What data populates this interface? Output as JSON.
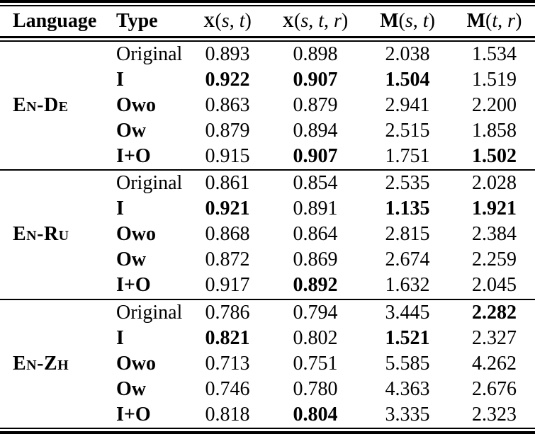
{
  "table": {
    "headers": [
      {
        "label": "Language"
      },
      {
        "label": "Type"
      },
      {
        "symbol": "X",
        "symbol_small": true,
        "vars": [
          "s",
          "t"
        ]
      },
      {
        "symbol": "X",
        "symbol_small": true,
        "vars": [
          "s",
          "t",
          "r"
        ]
      },
      {
        "symbol": "M",
        "symbol_small": false,
        "vars": [
          "s",
          "t"
        ]
      },
      {
        "symbol": "M",
        "symbol_small": false,
        "vars": [
          "t",
          "r"
        ]
      }
    ],
    "groups": [
      {
        "language": "En-De",
        "rows": [
          {
            "type": "Original",
            "type_bold": false,
            "values": [
              "0.893",
              "0.898",
              "2.038",
              "1.534"
            ],
            "bold": [
              false,
              false,
              false,
              false
            ]
          },
          {
            "type": "I",
            "type_bold": true,
            "values": [
              "0.922",
              "0.907",
              "1.504",
              "1.519"
            ],
            "bold": [
              true,
              true,
              true,
              false
            ]
          },
          {
            "type": "Owo",
            "type_bold": true,
            "values": [
              "0.863",
              "0.879",
              "2.941",
              "2.200"
            ],
            "bold": [
              false,
              false,
              false,
              false
            ]
          },
          {
            "type": "Ow",
            "type_bold": true,
            "values": [
              "0.879",
              "0.894",
              "2.515",
              "1.858"
            ],
            "bold": [
              false,
              false,
              false,
              false
            ]
          },
          {
            "type": "I+O",
            "type_bold": true,
            "values": [
              "0.915",
              "0.907",
              "1.751",
              "1.502"
            ],
            "bold": [
              false,
              true,
              false,
              true
            ]
          }
        ]
      },
      {
        "language": "En-Ru",
        "rows": [
          {
            "type": "Original",
            "type_bold": false,
            "values": [
              "0.861",
              "0.854",
              "2.535",
              "2.028"
            ],
            "bold": [
              false,
              false,
              false,
              false
            ]
          },
          {
            "type": "I",
            "type_bold": true,
            "values": [
              "0.921",
              "0.891",
              "1.135",
              "1.921"
            ],
            "bold": [
              true,
              false,
              true,
              true
            ]
          },
          {
            "type": "Owo",
            "type_bold": true,
            "values": [
              "0.868",
              "0.864",
              "2.815",
              "2.384"
            ],
            "bold": [
              false,
              false,
              false,
              false
            ]
          },
          {
            "type": "Ow",
            "type_bold": true,
            "values": [
              "0.872",
              "0.869",
              "2.674",
              "2.259"
            ],
            "bold": [
              false,
              false,
              false,
              false
            ]
          },
          {
            "type": "I+O",
            "type_bold": true,
            "values": [
              "0.917",
              "0.892",
              "1.632",
              "2.045"
            ],
            "bold": [
              false,
              true,
              false,
              false
            ]
          }
        ]
      },
      {
        "language": "En-Zh",
        "rows": [
          {
            "type": "Original",
            "type_bold": false,
            "values": [
              "0.786",
              "0.794",
              "3.445",
              "2.282"
            ],
            "bold": [
              false,
              false,
              false,
              true
            ]
          },
          {
            "type": "I",
            "type_bold": true,
            "values": [
              "0.821",
              "0.802",
              "1.521",
              "2.327"
            ],
            "bold": [
              true,
              false,
              true,
              false
            ]
          },
          {
            "type": "Owo",
            "type_bold": true,
            "values": [
              "0.713",
              "0.751",
              "5.585",
              "4.262"
            ],
            "bold": [
              false,
              false,
              false,
              false
            ]
          },
          {
            "type": "Ow",
            "type_bold": true,
            "values": [
              "0.746",
              "0.780",
              "4.363",
              "2.676"
            ],
            "bold": [
              false,
              false,
              false,
              false
            ]
          },
          {
            "type": "I+O",
            "type_bold": true,
            "values": [
              "0.818",
              "0.804",
              "3.335",
              "2.323"
            ],
            "bold": [
              false,
              true,
              false,
              false
            ]
          }
        ]
      }
    ],
    "colors": {
      "text": "#000000",
      "background": "#ffffff",
      "rule": "#000000"
    }
  }
}
